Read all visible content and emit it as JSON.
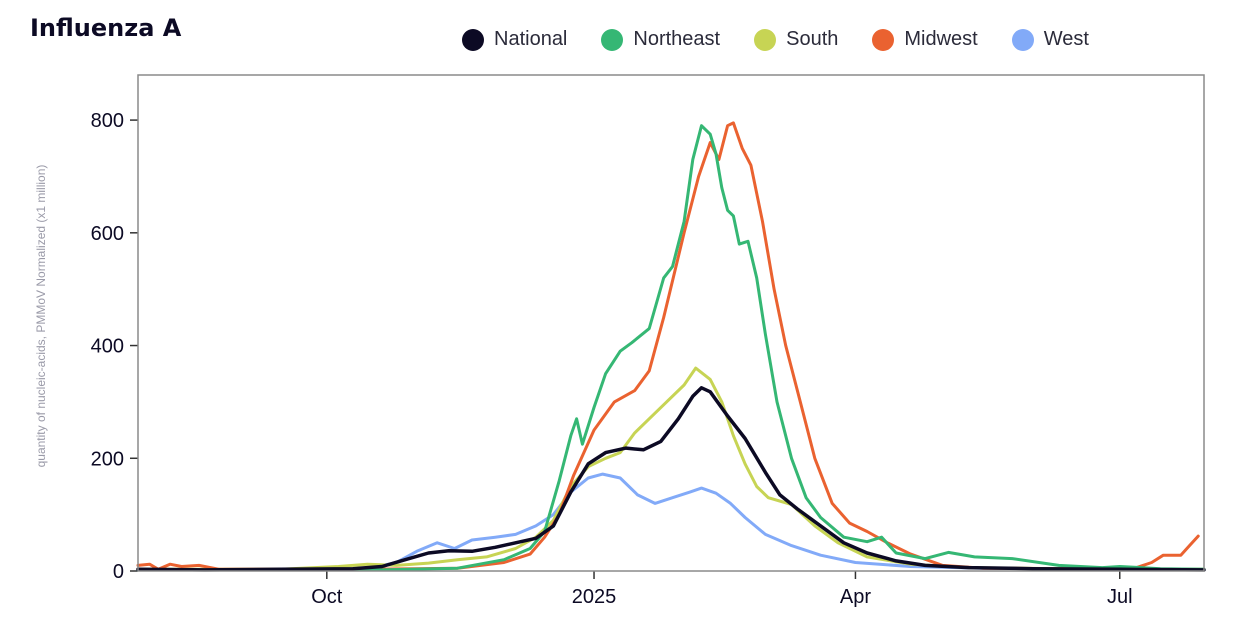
{
  "title": "Influenza A",
  "legend": [
    {
      "name": "National",
      "color": "#0c0a24"
    },
    {
      "name": "Northeast",
      "color": "#35b774"
    },
    {
      "name": "South",
      "color": "#c7d454"
    },
    {
      "name": "Midwest",
      "color": "#ea6230"
    },
    {
      "name": "West",
      "color": "#82aaf8"
    }
  ],
  "chart_data": {
    "type": "line",
    "ylabel": "quantity of nucleic-acids, PMMoV Normalized (x1 million)",
    "xlabel": "",
    "xlim": [
      "2024-07-28",
      "2025-07-30"
    ],
    "ylim": [
      0,
      880
    ],
    "y_ticks": [
      0,
      200,
      400,
      600,
      800
    ],
    "x_ticks": [
      {
        "date": "2024-10-01",
        "label": "Oct"
      },
      {
        "date": "2025-01-01",
        "label": "2025"
      },
      {
        "date": "2025-04-01",
        "label": "Apr"
      },
      {
        "date": "2025-07-01",
        "label": "Jul"
      }
    ],
    "grid": false,
    "legend_position": "top",
    "series": [
      {
        "name": "National",
        "color": "#0c0a24",
        "width": 3.5,
        "points": [
          [
            "2024-07-28",
            3
          ],
          [
            "2024-08-20",
            2
          ],
          [
            "2024-09-15",
            3
          ],
          [
            "2024-10-10",
            4
          ],
          [
            "2024-10-20",
            8
          ],
          [
            "2024-10-28",
            20
          ],
          [
            "2024-11-05",
            32
          ],
          [
            "2024-11-12",
            36
          ],
          [
            "2024-11-20",
            35
          ],
          [
            "2024-11-28",
            42
          ],
          [
            "2024-12-05",
            50
          ],
          [
            "2024-12-12",
            58
          ],
          [
            "2024-12-18",
            80
          ],
          [
            "2024-12-24",
            140
          ],
          [
            "2024-12-30",
            190
          ],
          [
            "2025-01-05",
            210
          ],
          [
            "2025-01-12",
            218
          ],
          [
            "2025-01-18",
            215
          ],
          [
            "2025-01-24",
            230
          ],
          [
            "2025-01-30",
            270
          ],
          [
            "2025-02-04",
            310
          ],
          [
            "2025-02-07",
            325
          ],
          [
            "2025-02-10",
            318
          ],
          [
            "2025-02-16",
            275
          ],
          [
            "2025-02-22",
            235
          ],
          [
            "2025-03-01",
            175
          ],
          [
            "2025-03-06",
            135
          ],
          [
            "2025-03-12",
            110
          ],
          [
            "2025-03-20",
            80
          ],
          [
            "2025-03-28",
            50
          ],
          [
            "2025-04-05",
            32
          ],
          [
            "2025-04-15",
            18
          ],
          [
            "2025-04-25",
            10
          ],
          [
            "2025-05-10",
            6
          ],
          [
            "2025-06-01",
            4
          ],
          [
            "2025-07-01",
            3
          ],
          [
            "2025-07-30",
            2
          ]
        ]
      },
      {
        "name": "Northeast",
        "color": "#35b774",
        "width": 3,
        "points": [
          [
            "2024-07-28",
            2
          ],
          [
            "2024-09-15",
            2
          ],
          [
            "2024-10-20",
            2
          ],
          [
            "2024-11-15",
            5
          ],
          [
            "2024-12-01",
            20
          ],
          [
            "2024-12-10",
            40
          ],
          [
            "2024-12-15",
            70
          ],
          [
            "2024-12-20",
            160
          ],
          [
            "2024-12-24",
            240
          ],
          [
            "2024-12-26",
            270
          ],
          [
            "2024-12-28",
            225
          ],
          [
            "2025-01-01",
            290
          ],
          [
            "2025-01-05",
            350
          ],
          [
            "2025-01-10",
            390
          ],
          [
            "2025-01-14",
            405
          ],
          [
            "2025-01-20",
            430
          ],
          [
            "2025-01-25",
            520
          ],
          [
            "2025-01-28",
            540
          ],
          [
            "2025-02-01",
            620
          ],
          [
            "2025-02-04",
            730
          ],
          [
            "2025-02-07",
            790
          ],
          [
            "2025-02-10",
            775
          ],
          [
            "2025-02-12",
            740
          ],
          [
            "2025-02-14",
            680
          ],
          [
            "2025-02-16",
            640
          ],
          [
            "2025-02-18",
            630
          ],
          [
            "2025-02-20",
            580
          ],
          [
            "2025-02-23",
            585
          ],
          [
            "2025-02-26",
            520
          ],
          [
            "2025-03-01",
            420
          ],
          [
            "2025-03-05",
            300
          ],
          [
            "2025-03-10",
            200
          ],
          [
            "2025-03-15",
            130
          ],
          [
            "2025-03-20",
            95
          ],
          [
            "2025-03-28",
            60
          ],
          [
            "2025-04-05",
            52
          ],
          [
            "2025-04-10",
            60
          ],
          [
            "2025-04-15",
            32
          ],
          [
            "2025-04-25",
            22
          ],
          [
            "2025-05-03",
            33
          ],
          [
            "2025-05-12",
            25
          ],
          [
            "2025-05-25",
            22
          ],
          [
            "2025-06-10",
            10
          ],
          [
            "2025-06-25",
            6
          ],
          [
            "2025-07-01",
            8
          ],
          [
            "2025-07-15",
            4
          ],
          [
            "2025-07-30",
            3
          ]
        ]
      },
      {
        "name": "South",
        "color": "#c7d454",
        "width": 3,
        "points": [
          [
            "2024-07-28",
            3
          ],
          [
            "2024-09-15",
            3
          ],
          [
            "2024-10-05",
            8
          ],
          [
            "2024-10-15",
            12
          ],
          [
            "2024-10-25",
            10
          ],
          [
            "2024-11-05",
            14
          ],
          [
            "2024-11-15",
            20
          ],
          [
            "2024-11-25",
            25
          ],
          [
            "2024-12-05",
            40
          ],
          [
            "2024-12-12",
            60
          ],
          [
            "2024-12-18",
            90
          ],
          [
            "2024-12-24",
            150
          ],
          [
            "2024-12-30",
            185
          ],
          [
            "2025-01-05",
            200
          ],
          [
            "2025-01-10",
            210
          ],
          [
            "2025-01-15",
            245
          ],
          [
            "2025-01-20",
            270
          ],
          [
            "2025-01-26",
            300
          ],
          [
            "2025-02-01",
            330
          ],
          [
            "2025-02-05",
            360
          ],
          [
            "2025-02-10",
            340
          ],
          [
            "2025-02-14",
            300
          ],
          [
            "2025-02-18",
            240
          ],
          [
            "2025-02-22",
            190
          ],
          [
            "2025-02-26",
            150
          ],
          [
            "2025-03-02",
            130
          ],
          [
            "2025-03-10",
            118
          ],
          [
            "2025-03-18",
            80
          ],
          [
            "2025-03-26",
            50
          ],
          [
            "2025-04-05",
            25
          ],
          [
            "2025-04-20",
            12
          ],
          [
            "2025-05-10",
            6
          ],
          [
            "2025-06-10",
            4
          ],
          [
            "2025-07-30",
            3
          ]
        ]
      },
      {
        "name": "Midwest",
        "color": "#ea6230",
        "width": 3,
        "points": [
          [
            "2024-07-28",
            10
          ],
          [
            "2024-08-01",
            12
          ],
          [
            "2024-08-04",
            3
          ],
          [
            "2024-08-08",
            12
          ],
          [
            "2024-08-12",
            8
          ],
          [
            "2024-08-18",
            10
          ],
          [
            "2024-08-25",
            3
          ],
          [
            "2024-09-15",
            3
          ],
          [
            "2024-10-15",
            3
          ],
          [
            "2024-11-15",
            5
          ],
          [
            "2024-12-01",
            15
          ],
          [
            "2024-12-10",
            30
          ],
          [
            "2024-12-15",
            60
          ],
          [
            "2024-12-20",
            100
          ],
          [
            "2024-12-25",
            170
          ],
          [
            "2025-01-01",
            250
          ],
          [
            "2025-01-08",
            300
          ],
          [
            "2025-01-15",
            320
          ],
          [
            "2025-01-20",
            355
          ],
          [
            "2025-01-25",
            450
          ],
          [
            "2025-02-01",
            600
          ],
          [
            "2025-02-06",
            700
          ],
          [
            "2025-02-10",
            760
          ],
          [
            "2025-02-13",
            730
          ],
          [
            "2025-02-16",
            790
          ],
          [
            "2025-02-18",
            795
          ],
          [
            "2025-02-21",
            750
          ],
          [
            "2025-02-24",
            720
          ],
          [
            "2025-02-28",
            620
          ],
          [
            "2025-03-04",
            500
          ],
          [
            "2025-03-08",
            400
          ],
          [
            "2025-03-13",
            300
          ],
          [
            "2025-03-18",
            200
          ],
          [
            "2025-03-24",
            120
          ],
          [
            "2025-03-30",
            85
          ],
          [
            "2025-04-05",
            70
          ],
          [
            "2025-04-12",
            50
          ],
          [
            "2025-04-20",
            30
          ],
          [
            "2025-05-01",
            10
          ],
          [
            "2025-05-15",
            5
          ],
          [
            "2025-06-15",
            4
          ],
          [
            "2025-07-05",
            3
          ],
          [
            "2025-07-12",
            15
          ],
          [
            "2025-07-16",
            28
          ],
          [
            "2025-07-22",
            28
          ],
          [
            "2025-07-25",
            45
          ],
          [
            "2025-07-28",
            62
          ]
        ]
      },
      {
        "name": "West",
        "color": "#82aaf8",
        "width": 3,
        "points": [
          [
            "2024-07-28",
            2
          ],
          [
            "2024-09-15",
            3
          ],
          [
            "2024-10-15",
            4
          ],
          [
            "2024-10-25",
            15
          ],
          [
            "2024-11-01",
            35
          ],
          [
            "2024-11-08",
            50
          ],
          [
            "2024-11-14",
            40
          ],
          [
            "2024-11-20",
            55
          ],
          [
            "2024-11-28",
            60
          ],
          [
            "2024-12-05",
            65
          ],
          [
            "2024-12-12",
            80
          ],
          [
            "2024-12-18",
            100
          ],
          [
            "2024-12-24",
            140
          ],
          [
            "2024-12-30",
            165
          ],
          [
            "2025-01-04",
            172
          ],
          [
            "2025-01-10",
            165
          ],
          [
            "2025-01-16",
            135
          ],
          [
            "2025-01-22",
            120
          ],
          [
            "2025-01-28",
            130
          ],
          [
            "2025-02-03",
            140
          ],
          [
            "2025-02-07",
            147
          ],
          [
            "2025-02-12",
            138
          ],
          [
            "2025-02-17",
            120
          ],
          [
            "2025-02-22",
            95
          ],
          [
            "2025-03-01",
            65
          ],
          [
            "2025-03-10",
            45
          ],
          [
            "2025-03-20",
            28
          ],
          [
            "2025-04-01",
            15
          ],
          [
            "2025-04-20",
            8
          ],
          [
            "2025-05-15",
            5
          ],
          [
            "2025-06-15",
            4
          ],
          [
            "2025-07-30",
            3
          ]
        ]
      }
    ]
  }
}
